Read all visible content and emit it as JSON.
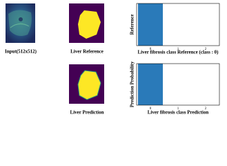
{
  "panels": {
    "input_caption": "Input(512x512)",
    "reference_caption": "Liver Reference",
    "prediction_caption": "Liver Prediction"
  },
  "chart_data": [
    {
      "type": "bar",
      "xlabel": "Liver fibrosis class Reference (class : 0)",
      "ylabel": "Reference",
      "categories": [
        "0",
        "1",
        "2"
      ],
      "values": [
        1,
        0,
        0
      ],
      "color": "#2a7ab9",
      "ylim": [
        0,
        1
      ]
    },
    {
      "type": "bar",
      "xlabel": "Liver fibrosis class Prediction",
      "ylabel": "Prediction Probability",
      "categories": [
        "0",
        "1",
        "2"
      ],
      "values": [
        1,
        0,
        0
      ],
      "color": "#2a7ab9",
      "ylim": [
        0,
        1
      ]
    }
  ]
}
